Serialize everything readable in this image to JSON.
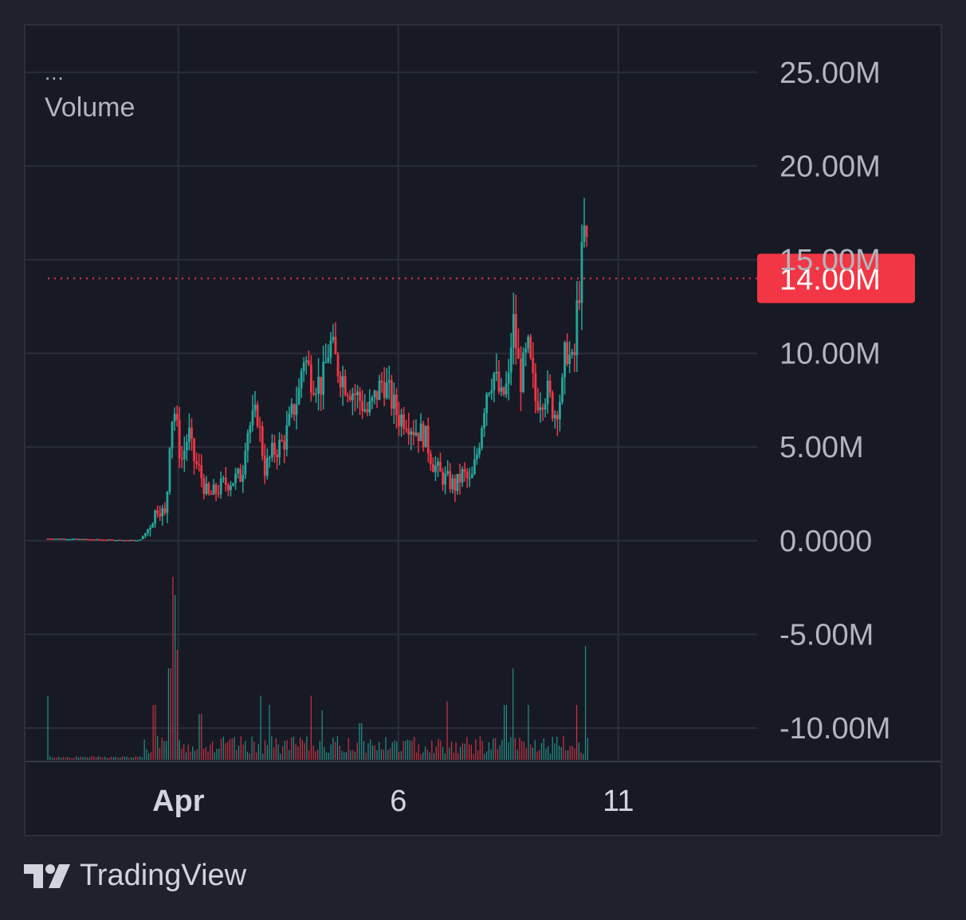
{
  "legend": {
    "dots": "...",
    "title": "Volume"
  },
  "brand": {
    "name": "TradingView"
  },
  "colors": {
    "up": "#26a69a",
    "down": "#f23645",
    "grid": "#2a2e39",
    "background": "#171a25"
  },
  "chart_data": {
    "type": "candlestick",
    "y_axis": {
      "range": [
        -11700000,
        27500000
      ],
      "ticks": [
        {
          "value": 25000000,
          "label": "25.00M"
        },
        {
          "value": 20000000,
          "label": "20.00M"
        },
        {
          "value": 15000000,
          "label": "15.00M"
        },
        {
          "value": 10000000,
          "label": "10.00M"
        },
        {
          "value": 5000000,
          "label": "5.00M"
        },
        {
          "value": 0,
          "label": "0.0000"
        },
        {
          "value": -5000000,
          "label": "-5.00M"
        },
        {
          "value": -10000000,
          "label": "-10.00M"
        }
      ]
    },
    "x_axis": {
      "ticks": [
        {
          "label": "Apr",
          "bold": true,
          "pos": 0.205
        },
        {
          "label": "6",
          "bold": false,
          "pos": 0.5
        },
        {
          "label": "11",
          "bold": false,
          "pos": 0.795
        }
      ]
    },
    "last_price": {
      "value": 14000000,
      "label": "14.00M",
      "color": "#f23645"
    },
    "grid": true,
    "price_path": [
      [
        0.0,
        0.12
      ],
      [
        0.12,
        0.02
      ],
      [
        0.13,
        0.5
      ],
      [
        0.145,
        1.9
      ],
      [
        0.155,
        1.2
      ],
      [
        0.16,
        5.5
      ],
      [
        0.165,
        7.3
      ],
      [
        0.175,
        4.2
      ],
      [
        0.185,
        5.8
      ],
      [
        0.19,
        4.5
      ],
      [
        0.2,
        3.6
      ],
      [
        0.21,
        2.3
      ],
      [
        0.22,
        2.6
      ],
      [
        0.23,
        3.0
      ],
      [
        0.245,
        3.3
      ],
      [
        0.255,
        3.5
      ],
      [
        0.26,
        5.8
      ],
      [
        0.275,
        6.8
      ],
      [
        0.285,
        3.8
      ],
      [
        0.295,
        4.7
      ],
      [
        0.31,
        5.3
      ],
      [
        0.32,
        6.7
      ],
      [
        0.33,
        8.0
      ],
      [
        0.335,
        10.0
      ],
      [
        0.345,
        8.8
      ],
      [
        0.36,
        8.3
      ],
      [
        0.37,
        10.6
      ],
      [
        0.38,
        9.3
      ],
      [
        0.39,
        8.5
      ],
      [
        0.4,
        8.0
      ],
      [
        0.41,
        7.5
      ],
      [
        0.42,
        6.8
      ],
      [
        0.43,
        7.7
      ],
      [
        0.44,
        8.6
      ],
      [
        0.45,
        7.6
      ],
      [
        0.46,
        6.6
      ],
      [
        0.47,
        6.6
      ],
      [
        0.48,
        6.0
      ],
      [
        0.495,
        5.6
      ],
      [
        0.505,
        4.2
      ],
      [
        0.515,
        3.5
      ],
      [
        0.525,
        3.2
      ],
      [
        0.535,
        2.9
      ],
      [
        0.545,
        3.6
      ],
      [
        0.555,
        3.0
      ],
      [
        0.565,
        5.0
      ],
      [
        0.575,
        8.0
      ],
      [
        0.585,
        9.0
      ],
      [
        0.595,
        7.5
      ],
      [
        0.605,
        8.5
      ],
      [
        0.61,
        12.0
      ],
      [
        0.62,
        8.5
      ],
      [
        0.63,
        10.2
      ],
      [
        0.64,
        7.5
      ],
      [
        0.655,
        8.0
      ],
      [
        0.665,
        6.8
      ],
      [
        0.675,
        8.0
      ],
      [
        0.68,
        10.5
      ],
      [
        0.69,
        9.0
      ],
      [
        0.695,
        12.7
      ],
      [
        0.7,
        14.5
      ],
      [
        0.705,
        16.8
      ],
      [
        0.71,
        14.0
      ]
    ],
    "volume_spikes": [
      {
        "pos": 0.0,
        "v": 0.35
      },
      {
        "pos": 0.165,
        "v": 1.0
      },
      {
        "pos": 0.167,
        "v": 0.9
      },
      {
        "pos": 0.17,
        "v": 0.6
      },
      {
        "pos": 0.16,
        "v": 0.5
      },
      {
        "pos": 0.14,
        "v": 0.3
      },
      {
        "pos": 0.2,
        "v": 0.25
      },
      {
        "pos": 0.28,
        "v": 0.35
      },
      {
        "pos": 0.29,
        "v": 0.3
      },
      {
        "pos": 0.345,
        "v": 0.35
      },
      {
        "pos": 0.36,
        "v": 0.27
      },
      {
        "pos": 0.41,
        "v": 0.2
      },
      {
        "pos": 0.525,
        "v": 0.32
      },
      {
        "pos": 0.6,
        "v": 0.3
      },
      {
        "pos": 0.61,
        "v": 0.5
      },
      {
        "pos": 0.63,
        "v": 0.3
      },
      {
        "pos": 0.695,
        "v": 0.3
      },
      {
        "pos": 0.705,
        "v": 0.62
      }
    ]
  }
}
